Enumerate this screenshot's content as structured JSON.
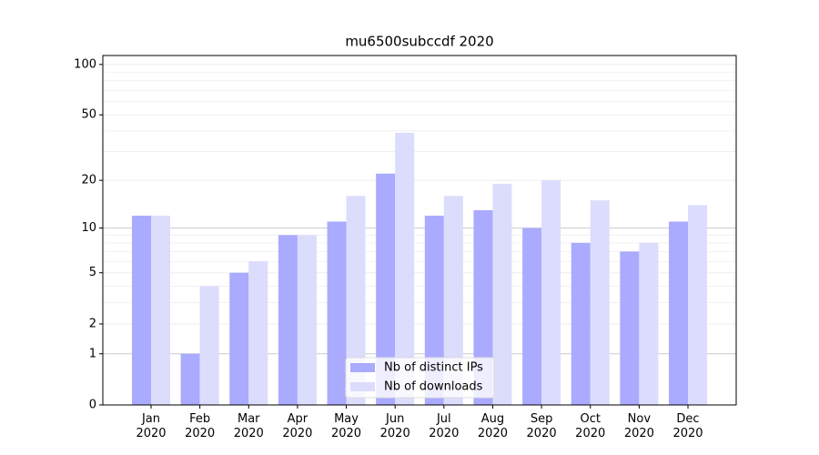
{
  "chart_data": {
    "type": "bar",
    "title": "mu6500subccdf 2020",
    "categories": [
      "Jan\n2020",
      "Feb\n2020",
      "Mar\n2020",
      "Apr\n2020",
      "May\n2020",
      "Jun\n2020",
      "Jul\n2020",
      "Aug\n2020",
      "Sep\n2020",
      "Oct\n2020",
      "Nov\n2020",
      "Dec\n2020"
    ],
    "series": [
      {
        "name": "Nb of distinct IPs",
        "color": "#aaaaff",
        "values": [
          12,
          1,
          5,
          9,
          11,
          22,
          12,
          13,
          10,
          8,
          7,
          11
        ]
      },
      {
        "name": "Nb of downloads",
        "color": "#dcdcfc",
        "values": [
          12,
          4,
          6,
          9,
          16,
          39,
          16,
          19,
          20,
          15,
          8,
          14
        ]
      }
    ],
    "yscale": "log1p",
    "ylim": [
      0,
      113
    ],
    "yticks": [
      0,
      1,
      2,
      5,
      10,
      20,
      50,
      100
    ],
    "minor_yticks": [
      3,
      4,
      6,
      7,
      8,
      9,
      30,
      40,
      60,
      70,
      80,
      90
    ],
    "major_grid": [
      1,
      10
    ],
    "grid": true,
    "legend": "lower center"
  }
}
